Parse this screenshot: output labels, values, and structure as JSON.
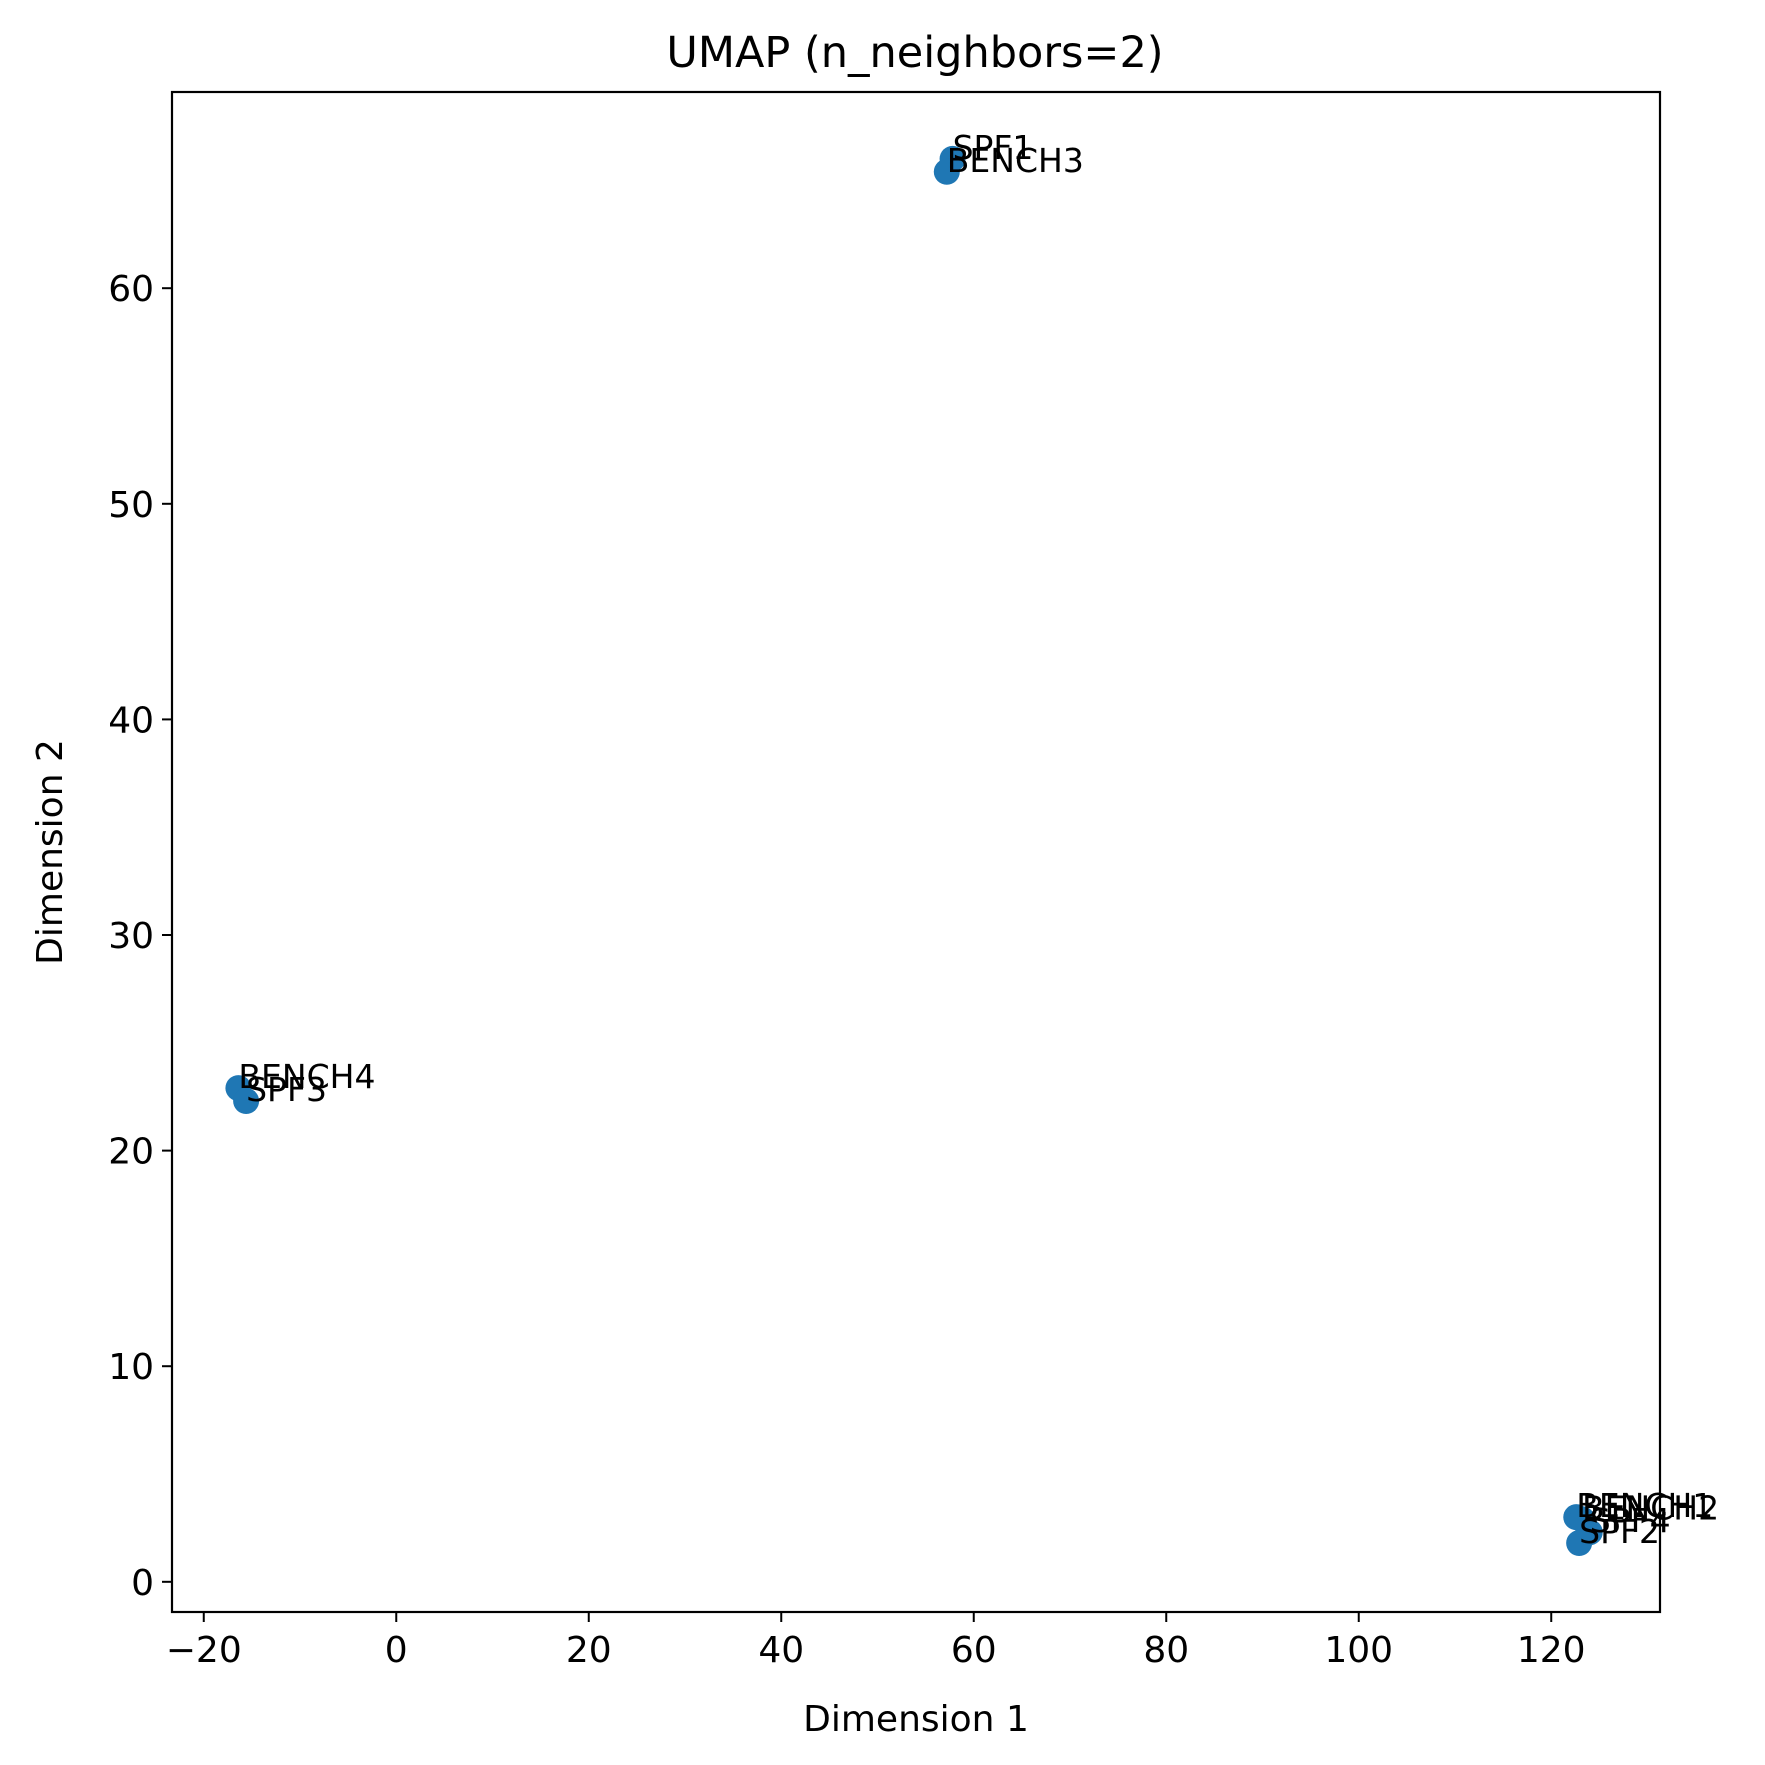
{
  "chart_data": {
    "type": "scatter",
    "title": "UMAP (n_neighbors=2)",
    "xlabel": "Dimension 1",
    "ylabel": "Dimension 2",
    "xlim": [
      -23.3,
      131.3
    ],
    "ylim": [
      -1.4,
      69.1
    ],
    "xticks": [
      -20,
      0,
      20,
      40,
      60,
      80,
      100,
      120
    ],
    "xtick_labels": [
      "−20",
      "0",
      "20",
      "40",
      "60",
      "80",
      "100",
      "120"
    ],
    "yticks": [
      0,
      10,
      20,
      30,
      40,
      50,
      60
    ],
    "ytick_labels": [
      "0",
      "10",
      "20",
      "30",
      "40",
      "50",
      "60"
    ],
    "grid": false,
    "marker_color": "#1f77b4",
    "points": [
      {
        "label": "SPF1",
        "x": 57.8,
        "y": 66.0
      },
      {
        "label": "BENCH3",
        "x": 57.2,
        "y": 65.4
      },
      {
        "label": "BENCH4",
        "x": -16.4,
        "y": 22.9
      },
      {
        "label": "SPF3",
        "x": -15.6,
        "y": 22.3
      },
      {
        "label": "BENCH1",
        "x": 122.6,
        "y": 3.0
      },
      {
        "label": "BENCH2",
        "x": 123.2,
        "y": 2.9
      },
      {
        "label": "SPF4",
        "x": 124.0,
        "y": 2.3
      },
      {
        "label": "SPF2",
        "x": 122.9,
        "y": 1.8
      }
    ]
  }
}
